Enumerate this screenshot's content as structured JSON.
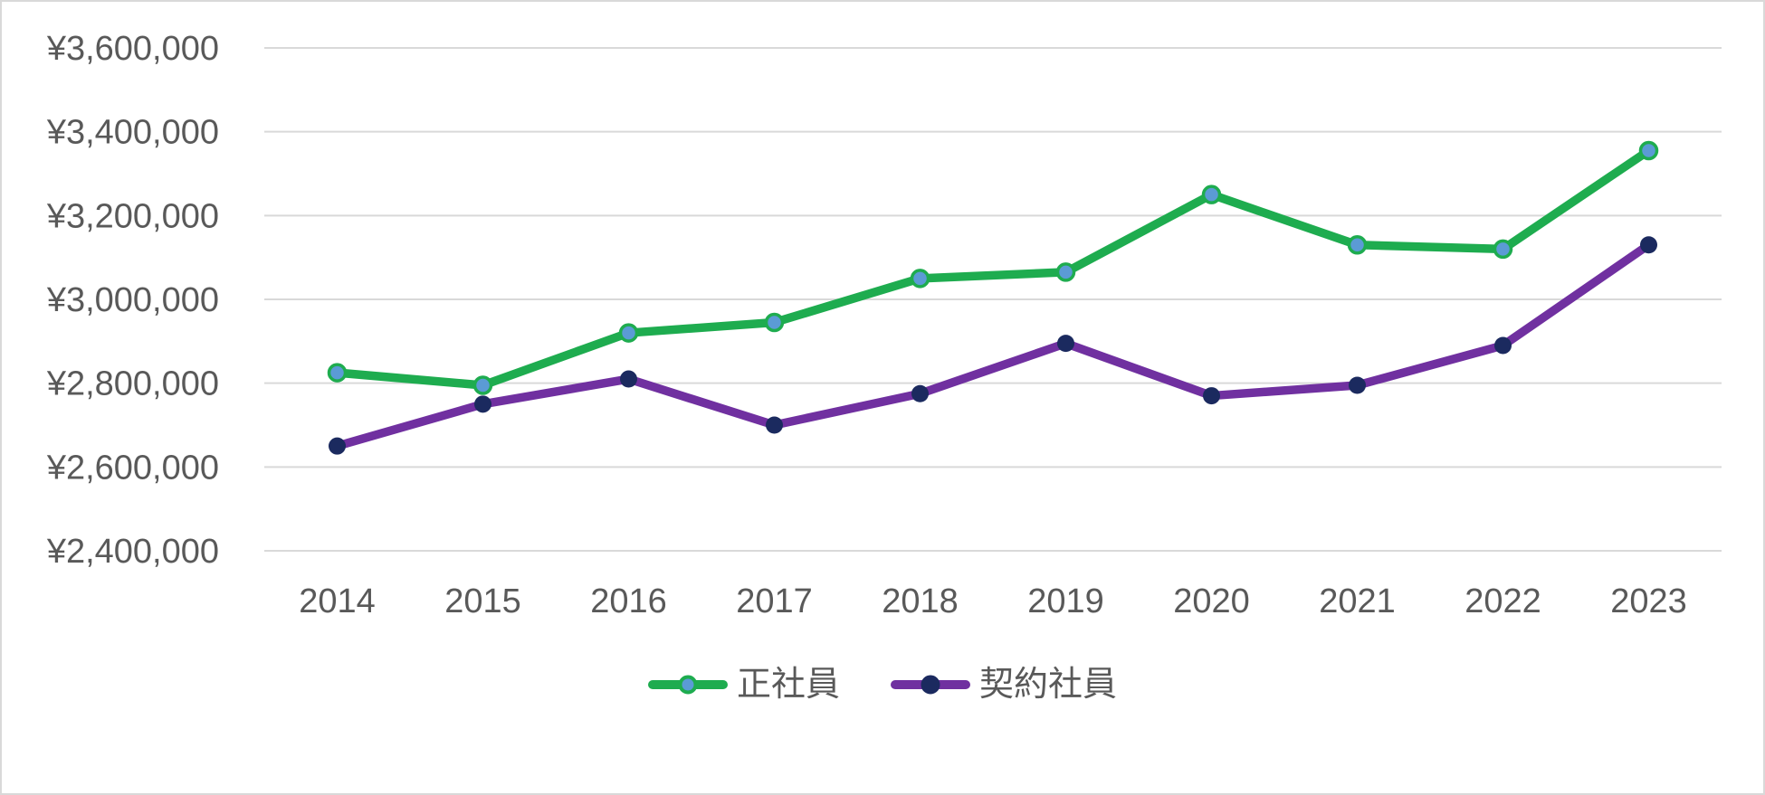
{
  "chart_data": {
    "type": "line",
    "title": "",
    "categories": [
      "2014",
      "2015",
      "2016",
      "2017",
      "2018",
      "2019",
      "2020",
      "2021",
      "2022",
      "2023"
    ],
    "series": [
      {
        "name": "正社員",
        "values": [
          2825000,
          2795000,
          2920000,
          2945000,
          3050000,
          3065000,
          3250000,
          3130000,
          3120000,
          3355000
        ],
        "line_color": "#1eac4f",
        "marker_fill": "#5b9bd5",
        "marker_stroke": "#1eac4f"
      },
      {
        "name": "契約社員",
        "values": [
          2650000,
          2750000,
          2810000,
          2700000,
          2775000,
          2895000,
          2770000,
          2795000,
          2890000,
          3130000
        ],
        "line_color": "#7030a0",
        "marker_fill": "#1b2a5f",
        "marker_stroke": "#1b2a5f"
      }
    ],
    "ylim": [
      2400000,
      3600000
    ],
    "ytick_step": 200000,
    "yticks": [
      {
        "value": 3600000,
        "label": "¥3,600,000"
      },
      {
        "value": 3400000,
        "label": "¥3,400,000"
      },
      {
        "value": 3200000,
        "label": "¥3,200,000"
      },
      {
        "value": 3000000,
        "label": "¥3,000,000"
      },
      {
        "value": 2800000,
        "label": "¥2,800,000"
      },
      {
        "value": 2600000,
        "label": "¥2,600,000"
      },
      {
        "value": 2400000,
        "label": "¥2,400,000"
      }
    ],
    "xlabel": "",
    "ylabel": "",
    "grid": "horizontal",
    "legend_position": "bottom",
    "axis_text_color": "#595959",
    "gridline_color": "#d9d9d9"
  }
}
